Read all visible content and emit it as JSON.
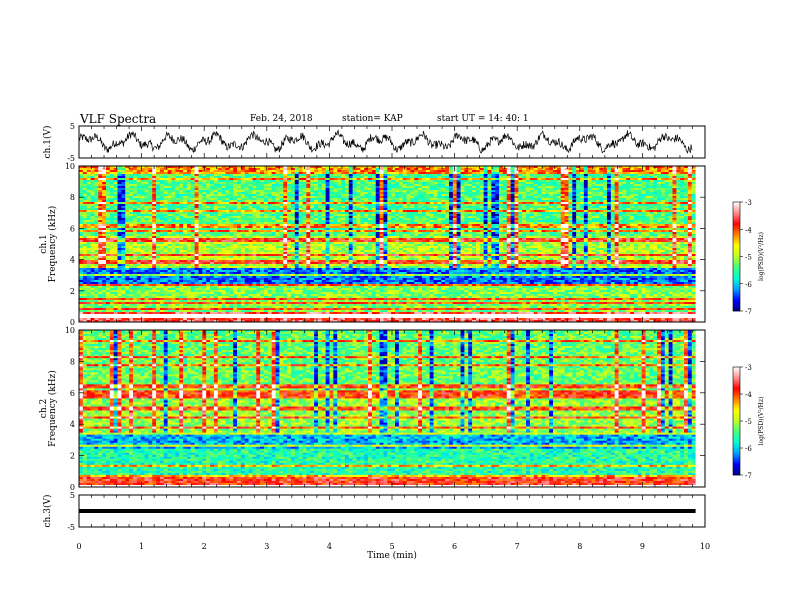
{
  "header": {
    "title": "VLF Spectra",
    "date": "Feb. 24, 2018",
    "station": "station= KAP",
    "start": "start  UT =   14: 40: 1"
  },
  "chart_data": [
    {
      "type": "line",
      "panel": "ch1-waveform",
      "ylabel": "ch.1(V)",
      "ylim": [
        -5,
        5
      ],
      "yticks": [
        "5",
        "-5"
      ],
      "xlim": [
        0,
        10
      ],
      "note_series": "continuous noisy oscillating trace, amplitude roughly -3 to +3 V, ending near x=9.8 min"
    },
    {
      "type": "heatmap",
      "panel": "ch1-spectrogram",
      "ylabel": "ch.1\nFrequency (kHz)",
      "ylim": [
        0,
        10
      ],
      "yticks": [
        "0",
        "2",
        "4",
        "6",
        "8",
        "10"
      ],
      "xlim": [
        0,
        10
      ],
      "colorbar": {
        "label": "log(PSD)(V²/Hz)",
        "range": [
          -7,
          -3
        ],
        "ticks": [
          "-3",
          "-4",
          "-5",
          "-6",
          "-7"
        ],
        "colormap": [
          "#00007f",
          "#0000ff",
          "#00a0ff",
          "#00ffd0",
          "#40ff80",
          "#c0ff20",
          "#ffff00",
          "#ff8000",
          "#ff0000",
          "#ff9090",
          "#ffffff"
        ]
      },
      "bands_kHz": [
        {
          "range": [
            0,
            0.7
          ],
          "level": -3.6
        },
        {
          "range": [
            0.7,
            2.5
          ],
          "level": -5.2
        },
        {
          "range": [
            2.5,
            3.5
          ],
          "level": -6.3
        },
        {
          "range": [
            3.5,
            5.5
          ],
          "level": -5.0
        },
        {
          "range": [
            5.5,
            10
          ],
          "level": -5.4
        }
      ]
    },
    {
      "type": "heatmap",
      "panel": "ch2-spectrogram",
      "ylabel": "ch.2\nFrequency (kHz)",
      "ylim": [
        0,
        10
      ],
      "yticks": [
        "0",
        "2",
        "4",
        "6",
        "8",
        "10"
      ],
      "xlim": [
        0,
        10
      ],
      "colorbar": {
        "label": "log(PSD)(V²/Hz)",
        "range": [
          -7,
          -3
        ],
        "ticks": [
          "-3",
          "-4",
          "-5",
          "-6",
          "-7"
        ]
      },
      "bands_kHz": [
        {
          "range": [
            0,
            0.7
          ],
          "level": -3.8
        },
        {
          "range": [
            0.7,
            2.5
          ],
          "level": -5.6
        },
        {
          "range": [
            2.5,
            3.5
          ],
          "level": -6.1
        },
        {
          "range": [
            3.5,
            6.5
          ],
          "level": -5.1
        },
        {
          "range": [
            6.5,
            10
          ],
          "level": -5.3
        }
      ]
    },
    {
      "type": "line",
      "panel": "ch3-waveform",
      "ylabel": "ch.3(V)",
      "ylim": [
        -5,
        5
      ],
      "yticks": [
        "5",
        "-5"
      ],
      "xlim": [
        0,
        10
      ],
      "constant_value": 0
    }
  ],
  "xaxis": {
    "label": "Time (min)",
    "ticks": [
      "0",
      "1",
      "2",
      "3",
      "4",
      "5",
      "6",
      "7",
      "8",
      "9",
      "10"
    ]
  }
}
